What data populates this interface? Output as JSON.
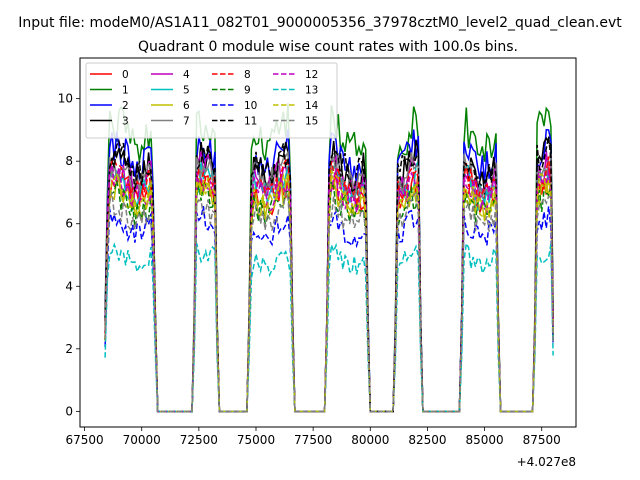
{
  "header": {
    "suptitle": "Input file: modeM0/AS1A11_082T01_9000005356_37978cztM0_level2_quad_clean.evt",
    "title": "Quadrant 0 module wise count rates with 100.0s bins."
  },
  "chart_data": {
    "type": "line",
    "xlabel": "",
    "ylabel": "",
    "offset_label": "+4.027e8",
    "xlim": [
      67300,
      89000
    ],
    "ylim": [
      -0.5,
      11.3
    ],
    "x_ticks": [
      67500,
      70000,
      72500,
      75000,
      77500,
      80000,
      82500,
      85000,
      87500
    ],
    "x_tick_labels": [
      "67500",
      "70000",
      "72500",
      "75000",
      "77500",
      "80000",
      "82500",
      "85000",
      "87500"
    ],
    "y_ticks": [
      0,
      2,
      4,
      6,
      8,
      10
    ],
    "y_tick_labels": [
      "0",
      "2",
      "4",
      "6",
      "8",
      "10"
    ],
    "grid": false,
    "legend_position": "top-left",
    "legend_columns": 4,
    "bin_seconds": 100,
    "x_start": 68400,
    "segments": [
      {
        "start": 68400,
        "end": 70600
      },
      {
        "start": 72300,
        "end": 73300
      },
      {
        "start": 74700,
        "end": 76600
      },
      {
        "start": 78100,
        "end": 79900
      },
      {
        "start": 81100,
        "end": 82200
      },
      {
        "start": 84000,
        "end": 85600
      },
      {
        "start": 87200,
        "end": 88000
      }
    ],
    "series": [
      {
        "name": "0",
        "color": "#ff0000",
        "dash": "solid",
        "level": 7.0
      },
      {
        "name": "1",
        "color": "#008000",
        "dash": "solid",
        "level": 8.8
      },
      {
        "name": "2",
        "color": "#0000ff",
        "dash": "solid",
        "level": 8.1
      },
      {
        "name": "3",
        "color": "#000000",
        "dash": "solid",
        "level": 7.8
      },
      {
        "name": "4",
        "color": "#bf00bf",
        "dash": "solid",
        "level": 7.5
      },
      {
        "name": "5",
        "color": "#00bfbf",
        "dash": "solid",
        "level": 7.2
      },
      {
        "name": "6",
        "color": "#bfbf00",
        "dash": "solid",
        "level": 6.8
      },
      {
        "name": "7",
        "color": "#808080",
        "dash": "solid",
        "level": 7.6
      },
      {
        "name": "8",
        "color": "#ff0000",
        "dash": "dashed",
        "level": 7.3
      },
      {
        "name": "9",
        "color": "#008000",
        "dash": "dashed",
        "level": 6.6
      },
      {
        "name": "10",
        "color": "#0000ff",
        "dash": "dashed",
        "level": 5.9
      },
      {
        "name": "11",
        "color": "#000000",
        "dash": "dashed",
        "level": 7.9
      },
      {
        "name": "12",
        "color": "#bf00bf",
        "dash": "dashed",
        "level": 7.1
      },
      {
        "name": "13",
        "color": "#00bfbf",
        "dash": "dashed",
        "level": 4.9
      },
      {
        "name": "14",
        "color": "#bfbf00",
        "dash": "dashed",
        "level": 6.9
      },
      {
        "name": "15",
        "color": "#808080",
        "dash": "dashed",
        "level": 6.3
      }
    ]
  }
}
